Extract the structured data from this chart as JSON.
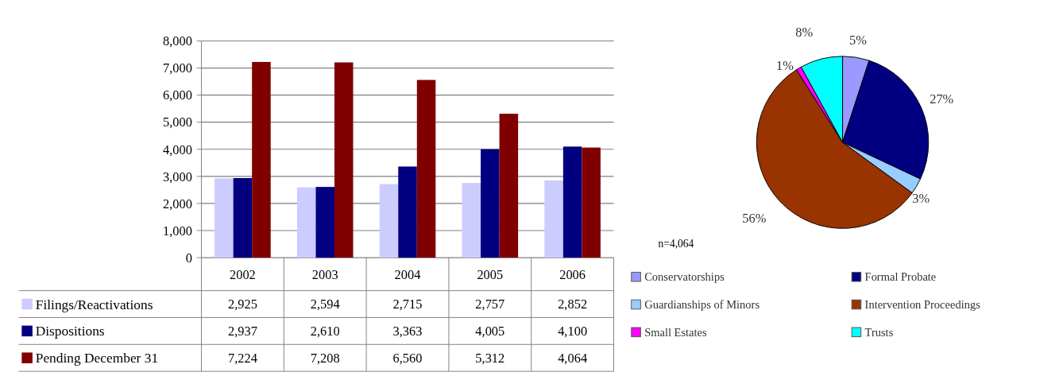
{
  "chart_data": [
    {
      "type": "bar",
      "categories": [
        "2002",
        "2003",
        "2004",
        "2005",
        "2006"
      ],
      "series": [
        {
          "name": "Filings/Reactivations",
          "color": "#ccccff",
          "values": [
            2925,
            2594,
            2715,
            2757,
            2852
          ],
          "value_labels": [
            "2,925",
            "2,594",
            "2,715",
            "2,757",
            "2,852"
          ]
        },
        {
          "name": "Dispositions",
          "color": "#000080",
          "values": [
            2937,
            2610,
            3363,
            4005,
            4100
          ],
          "value_labels": [
            "2,937",
            "2,610",
            "3,363",
            "4,005",
            "4,100"
          ]
        },
        {
          "name": "Pending December 31",
          "color": "#800000",
          "values": [
            7224,
            7208,
            6560,
            5312,
            4064
          ],
          "value_labels": [
            "7,224",
            "7,208",
            "6,560",
            "5,312",
            "4,064"
          ]
        }
      ],
      "ylim": [
        0,
        8000
      ],
      "yticks": [
        0,
        {
          "value": 1000,
          "label": "1,000"
        },
        {
          "value": 2000,
          "label": "2,000"
        },
        {
          "value": 3000,
          "label": "3,000"
        },
        {
          "value": 4000,
          "label": "4,000"
        },
        {
          "value": 5000,
          "label": "5,000"
        },
        {
          "value": 6000,
          "label": "6,000"
        },
        {
          "value": 7000,
          "label": "7,000"
        },
        {
          "value": 8000,
          "label": "8,000"
        }
      ],
      "grid": "y",
      "legend": "bottom"
    },
    {
      "type": "pie",
      "categories": [
        "Conservatorships",
        "Formal Probate",
        "Guardianships of Minors",
        "Intervention Proceedings",
        "Small Estates",
        "Trusts"
      ],
      "values": [
        5,
        27,
        3,
        56,
        1,
        8
      ],
      "colors": [
        "#9999ff",
        "#000080",
        "#99ccff",
        "#993300",
        "#ff00ff",
        "#00ffff"
      ],
      "value_labels": [
        "5%",
        "27%",
        "3%",
        "56%",
        "1%",
        "8%"
      ],
      "legend": "bottom",
      "annotations": [
        "n=4,064"
      ]
    }
  ]
}
